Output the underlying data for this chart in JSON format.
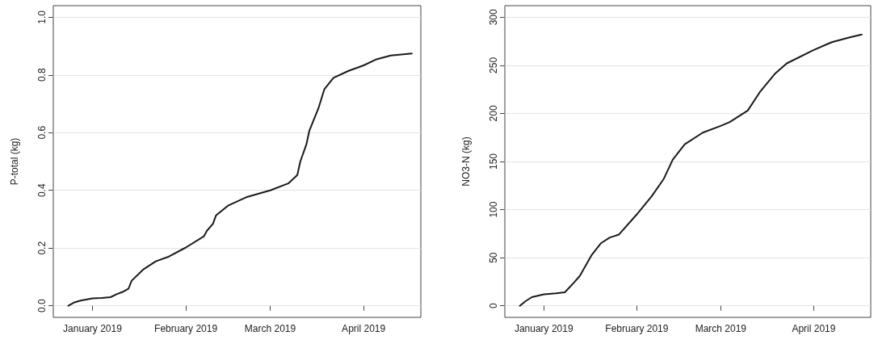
{
  "chart_data": [
    {
      "type": "line",
      "ylabel": "P-total (kg)",
      "xlim": [
        "2018-12-19",
        "2019-04-20"
      ],
      "ylim": [
        -0.04,
        1.04
      ],
      "xticks": [
        {
          "value": "2019-01-01",
          "label": "January 2019"
        },
        {
          "value": "2019-02-01",
          "label": "February 2019"
        },
        {
          "value": "2019-03-01",
          "label": "March 2019"
        },
        {
          "value": "2019-04-01",
          "label": "April 2019"
        }
      ],
      "yticks": [
        {
          "value": 0,
          "label": "0.0"
        },
        0.2,
        0.4,
        0.6,
        0.8,
        {
          "value": 1,
          "label": "1.0"
        }
      ],
      "grid": "y",
      "marker": "none",
      "line_style": "solid",
      "x": [
        "2018-12-24",
        "2018-12-26",
        "2018-12-28",
        "2019-01-01",
        "2019-01-04",
        "2019-01-07",
        "2019-01-09",
        "2019-01-11",
        "2019-01-13",
        "2019-01-14",
        "2019-01-18",
        "2019-01-22",
        "2019-01-26",
        "2019-02-01",
        "2019-02-07",
        "2019-02-08",
        "2019-02-10",
        "2019-02-11",
        "2019-02-15",
        "2019-02-21",
        "2019-03-01",
        "2019-03-07",
        "2019-03-10",
        "2019-03-11",
        "2019-03-13",
        "2019-03-14",
        "2019-03-17",
        "2019-03-19",
        "2019-03-22",
        "2019-03-27",
        "2019-04-01",
        "2019-04-05",
        "2019-04-10",
        "2019-04-17"
      ],
      "series": [
        {
          "color": "#1a1a1a",
          "values": [
            0,
            0.012,
            0.018,
            0.026,
            0.027,
            0.03,
            0.04,
            0.048,
            0.06,
            0.087,
            0.127,
            0.154,
            0.169,
            0.202,
            0.241,
            0.26,
            0.284,
            0.313,
            0.347,
            0.376,
            0.4,
            0.424,
            0.453,
            0.5,
            0.559,
            0.607,
            0.684,
            0.751,
            0.79,
            0.814,
            0.833,
            0.853,
            0.867,
            0.874
          ]
        }
      ]
    },
    {
      "type": "line",
      "ylabel": "NO3-N (kg)",
      "xlim": [
        "2018-12-19",
        "2019-04-20"
      ],
      "ylim": [
        -12,
        312
      ],
      "xticks": [
        {
          "value": "2019-01-01",
          "label": "January 2019"
        },
        {
          "value": "2019-02-01",
          "label": "February 2019"
        },
        {
          "value": "2019-03-01",
          "label": "March 2019"
        },
        {
          "value": "2019-04-01",
          "label": "April 2019"
        }
      ],
      "yticks": [
        0,
        50,
        100,
        150,
        200,
        250,
        300
      ],
      "grid": "y",
      "marker": "none",
      "line_style": "solid",
      "x": [
        "2018-12-24",
        "2018-12-26",
        "2018-12-28",
        "2019-01-01",
        "2019-01-05",
        "2019-01-08",
        "2019-01-11",
        "2019-01-13",
        "2019-01-17",
        "2019-01-20",
        "2019-01-23",
        "2019-01-26",
        "2019-02-01",
        "2019-02-06",
        "2019-02-10",
        "2019-02-13",
        "2019-02-17",
        "2019-02-23",
        "2019-03-01",
        "2019-03-04",
        "2019-03-10",
        "2019-03-14",
        "2019-03-19",
        "2019-03-23",
        "2019-04-01",
        "2019-04-07",
        "2019-04-13",
        "2019-04-17"
      ],
      "series": [
        {
          "color": "#1a1a1a",
          "values": [
            0,
            5,
            9,
            12,
            13,
            14,
            24,
            31,
            53,
            65,
            71,
            74,
            95,
            114,
            132,
            152,
            168,
            180,
            187,
            191,
            203,
            222,
            241,
            252,
            266,
            274,
            279,
            282
          ]
        }
      ]
    }
  ]
}
